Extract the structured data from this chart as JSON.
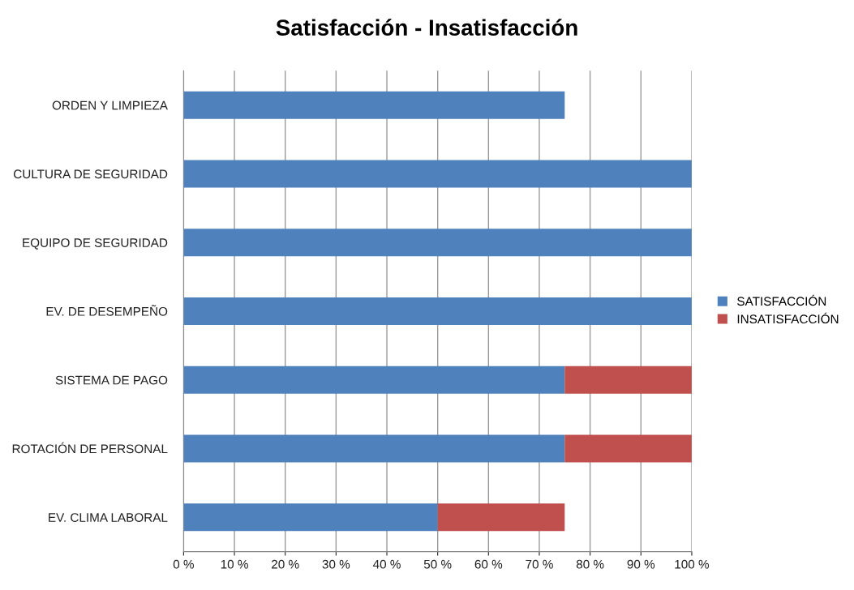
{
  "chart_data": {
    "type": "bar",
    "orientation": "horizontal",
    "stacked": true,
    "title": "Satisfacción - Insatisfacción",
    "categories": [
      "ORDEN Y LIMPIEZA",
      "CULTURA DE SEGURIDAD",
      "EQUIPO DE SEGURIDAD",
      "EV. DE DESEMPEÑO",
      "SISTEMA DE PAGO",
      "ROTACIÓN DE PERSONAL",
      "EV. CLIMA LABORAL"
    ],
    "series": [
      {
        "name": "SATISFACCIÓN",
        "color": "#4f81bd",
        "values": [
          75,
          100,
          100,
          100,
          75,
          75,
          50
        ]
      },
      {
        "name": "INSATISFACCIÓN",
        "color": "#c0504d",
        "values": [
          0,
          0,
          0,
          0,
          25,
          25,
          25
        ]
      }
    ],
    "xlim": [
      0,
      100
    ],
    "xticks": [
      {
        "value": 0,
        "label": "0 %"
      },
      {
        "value": 10,
        "label": "10 %"
      },
      {
        "value": 20,
        "label": "20 %"
      },
      {
        "value": 30,
        "label": "30 %"
      },
      {
        "value": 40,
        "label": "40 %"
      },
      {
        "value": 50,
        "label": "50 %"
      },
      {
        "value": 60,
        "label": "60 %"
      },
      {
        "value": 70,
        "label": "70 %"
      },
      {
        "value": 80,
        "label": "80 %"
      },
      {
        "value": 90,
        "label": "90 %"
      },
      {
        "value": 100,
        "label": "100 %"
      }
    ],
    "grid": "x",
    "legend": "right"
  }
}
